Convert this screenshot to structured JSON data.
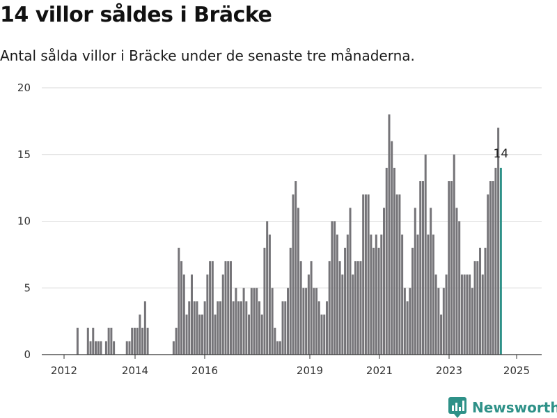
{
  "title": "14 villor såldes i Bräcke",
  "subtitle": "Antal sålda villor i Bräcke under de senaste tre månaderna.",
  "brand": {
    "name": "Newsworthy",
    "color": "#2e9188"
  },
  "colors": {
    "bar": "#757478",
    "highlight": "#2e9188",
    "grid": "#d9d9d9",
    "axis": "#333333"
  },
  "chart_data": {
    "type": "bar",
    "title": "14 villor såldes i Bräcke",
    "xlabel": "",
    "ylabel": "",
    "ylim": [
      0,
      20
    ],
    "yticks": [
      0,
      5,
      10,
      15,
      20
    ],
    "xticks": [
      "2012",
      "2014",
      "2016",
      "2019",
      "2021",
      "2023",
      "2025"
    ],
    "grid": true,
    "series": [
      {
        "values": [
          0,
          0,
          0,
          0,
          0,
          0,
          2,
          0,
          0,
          0,
          2,
          1,
          2,
          1,
          1,
          1,
          0,
          1,
          2,
          2,
          1,
          0,
          0,
          0,
          0,
          1,
          1,
          2,
          2,
          2,
          3,
          2,
          4,
          2,
          0,
          0,
          0,
          0,
          0,
          0,
          0,
          0,
          0,
          1,
          2,
          8,
          7,
          6,
          3,
          4,
          6,
          4,
          4,
          3,
          3,
          4,
          6,
          7,
          7,
          3,
          4,
          4,
          6,
          7,
          7,
          7,
          4,
          5,
          4,
          4,
          5,
          4,
          3,
          5,
          5,
          5,
          4,
          3,
          8,
          10,
          9,
          5,
          2,
          1,
          1,
          4,
          4,
          5,
          8,
          12,
          13,
          11,
          7,
          5,
          5,
          6,
          7,
          5,
          5,
          4,
          3,
          3,
          4,
          7,
          10,
          10,
          9,
          7,
          6,
          8,
          9,
          11,
          6,
          7,
          7,
          7,
          12,
          12,
          12,
          9,
          8,
          9,
          8,
          9,
          11,
          14,
          18,
          16,
          14,
          12,
          12,
          9,
          5,
          4,
          5,
          8,
          11,
          9,
          13,
          13,
          15,
          9,
          11,
          9,
          6,
          5,
          3,
          5,
          6,
          13,
          13,
          15,
          11,
          10,
          6,
          6,
          6,
          6,
          5,
          7,
          7,
          8,
          6,
          8,
          12,
          13,
          13,
          14,
          17,
          14
        ],
        "highlight_last": true
      }
    ],
    "annotation": {
      "label": "14"
    }
  }
}
